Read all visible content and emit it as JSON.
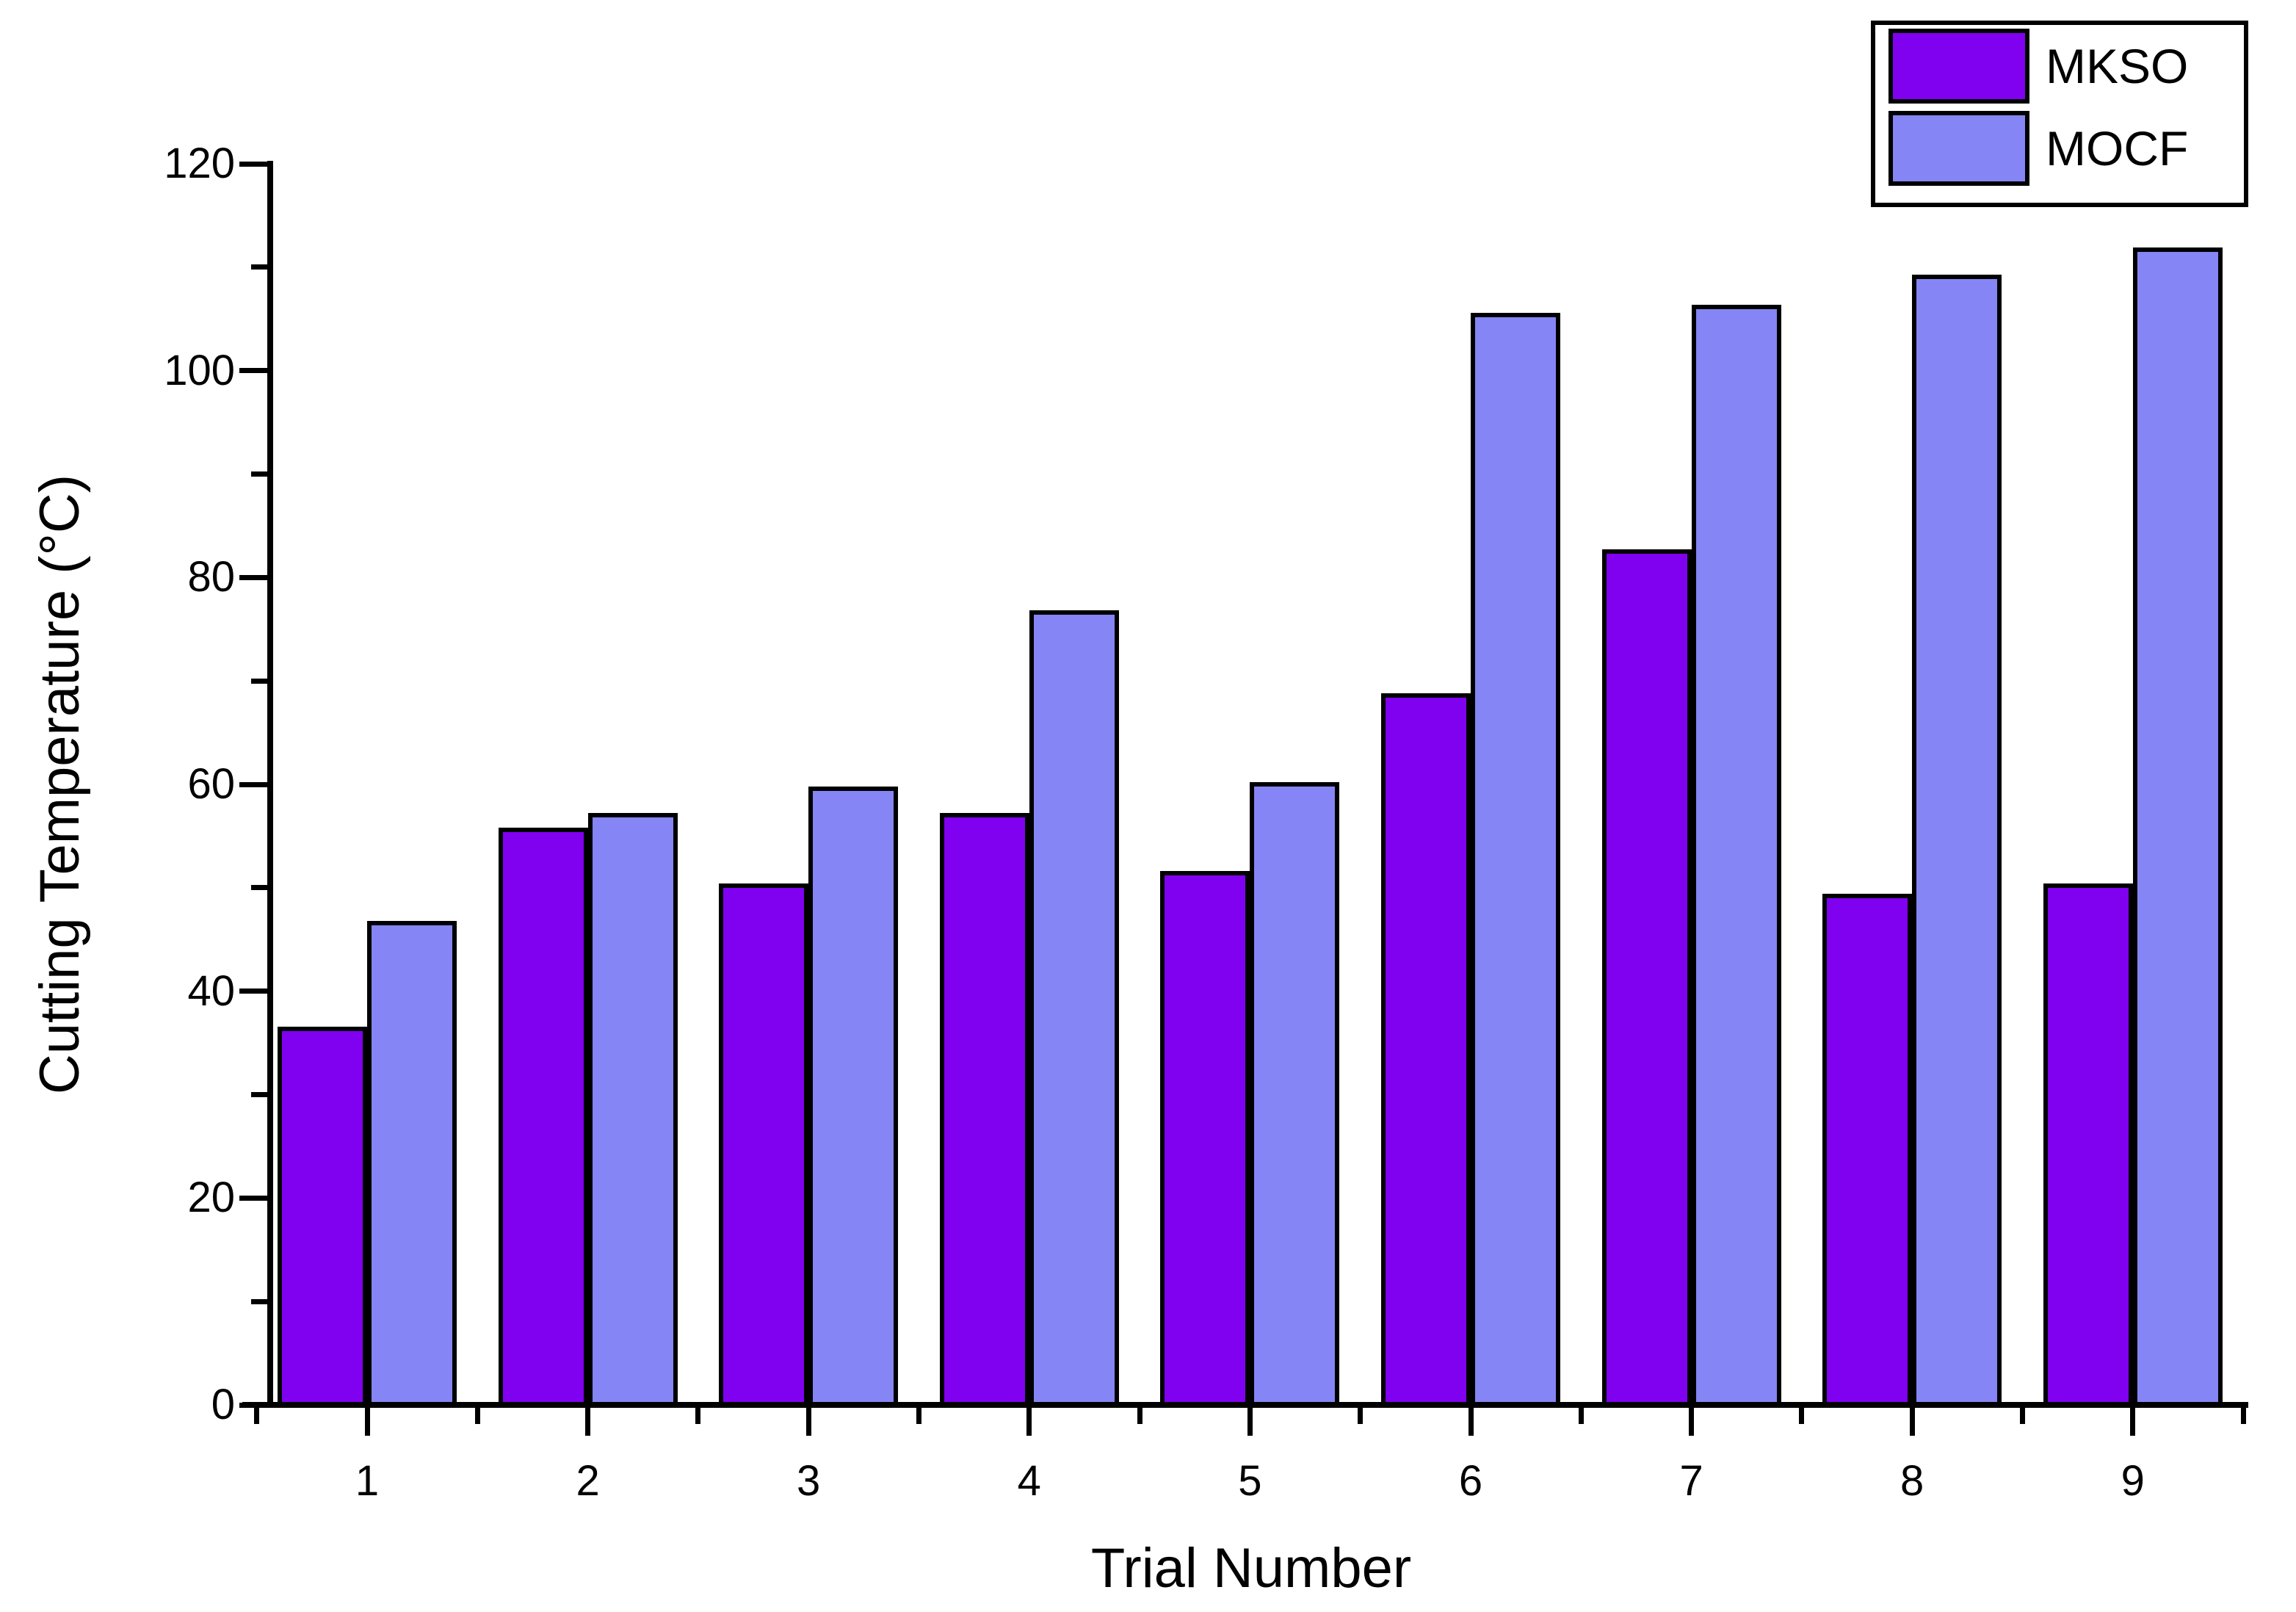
{
  "chart_data": {
    "type": "bar",
    "title": "",
    "xlabel": "Trial Number",
    "ylabel": "Cutting Temperature (°C)",
    "categories": [
      "1",
      "2",
      "3",
      "4",
      "5",
      "6",
      "7",
      "8",
      "9"
    ],
    "series": [
      {
        "name": "MKSO",
        "color": "#8000F0",
        "values": [
          36.6,
          55.8,
          50.4,
          57.2,
          51.6,
          68.8,
          82.7,
          49.4,
          50.4
        ]
      },
      {
        "name": "MOCF",
        "color": "#8585F5",
        "values": [
          46.8,
          57.2,
          59.8,
          76.8,
          60.2,
          105.6,
          106.4,
          109.3,
          111.9
        ]
      }
    ],
    "ylim": [
      0,
      120
    ],
    "y_major_ticks": [
      0,
      20,
      40,
      60,
      80,
      100,
      120
    ],
    "y_minor_ticks": [
      10,
      30,
      50,
      70,
      90,
      110
    ],
    "grid": false,
    "legend_position": "top-right",
    "bar_border_color": "#000000",
    "axis_color": "#000000",
    "background_color": "#FFFFFF"
  }
}
